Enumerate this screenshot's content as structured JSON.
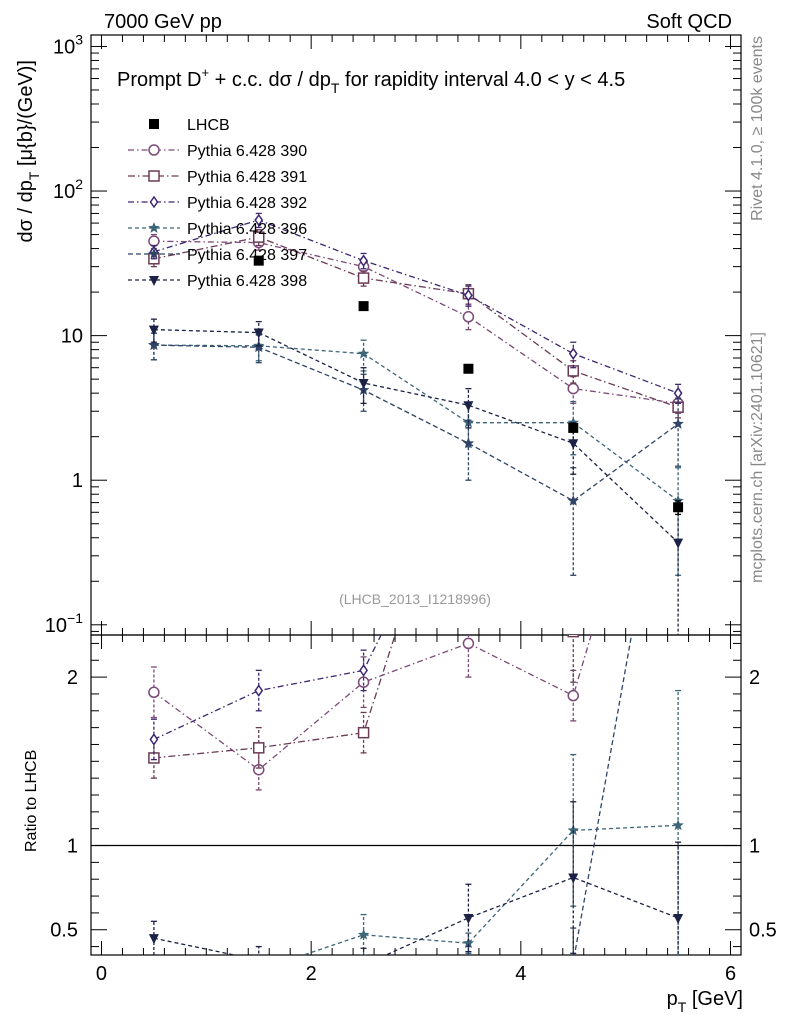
{
  "header": {
    "left": "7000 GeV pp",
    "right": "Soft QCD"
  },
  "side_labels": {
    "rivet": "Rivet 4.1.0, ≥ 100k events",
    "mcplots": "mcplots.cern.ch [arXiv:2401.10621]"
  },
  "chart_data": {
    "type": "line",
    "title_parts": {
      "a": "Prompt D",
      "sup": "+",
      "b": " + c.c.  dσ / dp",
      "sub": "T",
      "c": " for rapidity interval 4.0 < y < 4.5"
    },
    "analysis_tag": "(LHCB_2013_I1218996)",
    "ylabel_parts": {
      "a": "dσ / dp",
      "sub": "T",
      "b": " [μ{b}/(GeV)]"
    },
    "xlabel_parts": {
      "a": "p",
      "sub": "T",
      "b": " [GeV]"
    },
    "ratio_ylabel": "Ratio to LHCB",
    "xlim": [
      -0.1,
      6.1
    ],
    "ylim": [
      0.085,
      1200
    ],
    "yscale": "log",
    "ratio_ylim": [
      0.35,
      2.25
    ],
    "x_ticks": [
      "0",
      "2",
      "4",
      "6"
    ],
    "x_tick_values": [
      0,
      2,
      4,
      6
    ],
    "y_tick_labels": [
      {
        "v": 0.1,
        "base": "10",
        "exp": "−1"
      },
      {
        "v": 1,
        "base": "1",
        "exp": ""
      },
      {
        "v": 10,
        "base": "10",
        "exp": ""
      },
      {
        "v": 100,
        "base": "10",
        "exp": "2"
      },
      {
        "v": 1000,
        "base": "10",
        "exp": "3"
      }
    ],
    "ratio_ticks": [
      {
        "v": 0.5,
        "label": "0.5"
      },
      {
        "v": 1,
        "label": "1"
      },
      {
        "v": 2,
        "label": "2"
      }
    ],
    "data": {
      "name": "LHCB",
      "color": "#000000",
      "marker": "square-filled",
      "x": [
        0.5,
        1.5,
        2.5,
        3.5,
        4.5,
        5.5
      ],
      "y": [
        null,
        33,
        16,
        5.9,
        2.3,
        0.65
      ],
      "err": [
        0,
        0,
        0,
        0,
        0,
        0.07
      ]
    },
    "series": [
      {
        "name": "Pythia 6.428 390",
        "color": "#7b4a78",
        "marker": "circle",
        "dash": "6,3,1.5,3",
        "x": [
          0.5,
          1.5,
          2.5,
          3.5,
          4.5,
          5.5
        ],
        "y": [
          45,
          44,
          30,
          13.5,
          4.3,
          3.4
        ],
        "err": [
          5,
          5,
          3,
          2.5,
          0.9,
          0.5
        ],
        "ratio": [
          1.91,
          1.45,
          1.97,
          2.2,
          1.89,
          4.0
        ],
        "ratio_err": [
          0.15,
          0.12,
          0.15,
          0.2,
          0.15,
          0.5
        ]
      },
      {
        "name": "Pythia 6.428 391",
        "color": "#6a3b55",
        "marker": "square",
        "dash": "7,3,1.5,3",
        "x": [
          0.5,
          1.5,
          2.5,
          3.5,
          4.5,
          5.5
        ],
        "y": [
          34,
          48,
          25,
          19.5,
          5.7,
          3.2
        ],
        "err": [
          4,
          6,
          3,
          3,
          1,
          0.5
        ],
        "ratio": [
          1.52,
          1.58,
          1.67,
          3.6,
          2.27,
          5.0
        ],
        "ratio_err": [
          0.12,
          0.12,
          0.12,
          0.5,
          0.3,
          0.6
        ]
      },
      {
        "name": "Pythia 6.428 392",
        "color": "#3d2670",
        "marker": "diamond",
        "dash": "6,3,1.5,3",
        "x": [
          0.5,
          1.5,
          2.5,
          3.5,
          4.5,
          5.5
        ],
        "y": [
          38,
          63,
          33,
          19,
          7.5,
          4.0
        ],
        "err": [
          4,
          7,
          4,
          3,
          1.5,
          0.6
        ],
        "ratio": [
          1.63,
          1.92,
          2.04,
          3.3,
          3.4,
          6.1
        ],
        "ratio_err": [
          0.12,
          0.12,
          0.12,
          0.5,
          0.5,
          0.8
        ]
      },
      {
        "name": "Pythia 6.428 396",
        "color": "#3c6678",
        "marker": "star",
        "dash": "4,3",
        "x": [
          0.5,
          1.5,
          2.5,
          3.5,
          4.5,
          5.5
        ],
        "y": [
          8.6,
          8.5,
          7.5,
          2.5,
          2.5,
          0.72
        ],
        "err": [
          1.8,
          1.8,
          1.8,
          0.8,
          1.0,
          0.5
        ],
        "ratio": [
          0.2,
          0.26,
          0.47,
          0.42,
          1.09,
          1.12
        ],
        "ratio_err": [
          0.04,
          0.06,
          0.12,
          0.06,
          0.45,
          0.8
        ]
      },
      {
        "name": "Pythia 6.428 397",
        "color": "#2f4466",
        "marker": "star",
        "dash": "5,3",
        "x": [
          0.5,
          1.5,
          2.5,
          3.5,
          4.5,
          5.5
        ],
        "y": [
          8.6,
          8.3,
          4.2,
          1.8,
          0.72,
          2.45
        ],
        "err": [
          1.8,
          1.8,
          1.2,
          0.8,
          0.5,
          1.2
        ],
        "ratio": [
          0.2,
          0.25,
          0.26,
          0.3,
          0.31,
          3.8
        ],
        "ratio_err": [
          0.04,
          0.05,
          0.06,
          0.1,
          0.2,
          1.5
        ]
      },
      {
        "name": "Pythia 6.428 398",
        "color": "#1c2146",
        "marker": "triangle-down",
        "dash": "4,3",
        "x": [
          0.5,
          1.5,
          2.5,
          3.5,
          4.5,
          5.5
        ],
        "y": [
          11,
          10.5,
          4.7,
          3.3,
          1.8,
          0.37
        ],
        "err": [
          2,
          2,
          1.3,
          1,
          0.7,
          0.3
        ],
        "ratio": [
          0.45,
          0.32,
          0.29,
          0.57,
          0.81,
          0.57
        ],
        "ratio_err": [
          0.1,
          0.08,
          0.1,
          0.2,
          0.45,
          0.45
        ]
      }
    ]
  }
}
